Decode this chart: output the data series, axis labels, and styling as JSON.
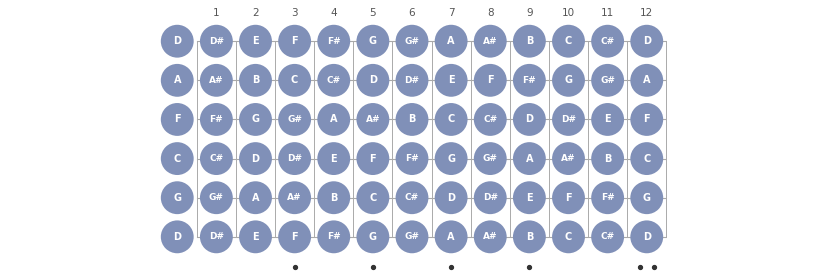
{
  "tuning_open": [
    "D",
    "A",
    "F",
    "C",
    "G",
    "D"
  ],
  "num_frets": 12,
  "strings": [
    [
      "D",
      "D#",
      "E",
      "F",
      "F#",
      "G",
      "G#",
      "A",
      "A#",
      "B",
      "C",
      "C#",
      "D"
    ],
    [
      "A",
      "A#",
      "B",
      "C",
      "C#",
      "D",
      "D#",
      "E",
      "F",
      "F#",
      "G",
      "G#",
      "A"
    ],
    [
      "F",
      "F#",
      "G",
      "G#",
      "A",
      "A#",
      "B",
      "C",
      "C#",
      "D",
      "D#",
      "E",
      "F"
    ],
    [
      "C",
      "C#",
      "D",
      "D#",
      "E",
      "F",
      "F#",
      "G",
      "G#",
      "A",
      "A#",
      "B",
      "C"
    ],
    [
      "G",
      "G#",
      "A",
      "A#",
      "B",
      "C",
      "C#",
      "D",
      "D#",
      "E",
      "F",
      "F#",
      "G"
    ],
    [
      "D",
      "D#",
      "E",
      "F",
      "F#",
      "G",
      "G#",
      "A",
      "A#",
      "B",
      "C",
      "C#",
      "D"
    ]
  ],
  "circle_color": "#8090b8",
  "text_color": "#ffffff",
  "line_color": "#aaaaaa",
  "bg_color": "#ffffff",
  "fret_marker_frets": [
    3,
    5,
    7,
    9,
    12
  ],
  "fret_marker_color": "#333333",
  "num_label_color": "#555555",
  "open_label_color": "#8090b8",
  "fig_width": 8.24,
  "fig_height": 2.8,
  "dpi": 100
}
